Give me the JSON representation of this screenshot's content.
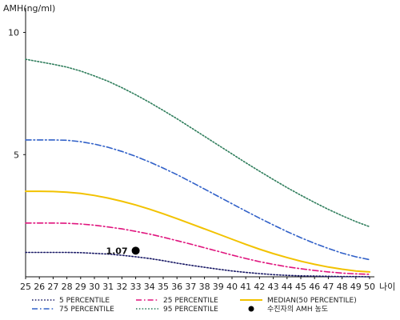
{
  "chart_data": {
    "type": "line",
    "ylabel": "AMH(ng/ml)",
    "xlabel": "나이",
    "x": [
      25,
      26,
      27,
      28,
      29,
      30,
      31,
      32,
      33,
      34,
      35,
      36,
      37,
      38,
      39,
      40,
      41,
      42,
      43,
      44,
      45,
      46,
      47,
      48,
      49,
      50
    ],
    "xticks": [
      "25",
      "26",
      "27",
      "28",
      "29",
      "30",
      "31",
      "32",
      "33",
      "34",
      "35",
      "36",
      "37",
      "38",
      "39",
      "40",
      "41",
      "42",
      "43",
      "44",
      "45",
      "46",
      "47",
      "48",
      "49",
      "50"
    ],
    "ylim": [
      0,
      11
    ],
    "yticks": [
      "5",
      "10"
    ],
    "series": [
      {
        "name": "5 PERCENTILE",
        "color": "#1a1a66",
        "style": "dotted",
        "values": [
          1.0,
          1.0,
          1.0,
          1.0,
          0.99,
          0.96,
          0.93,
          0.88,
          0.82,
          0.75,
          0.66,
          0.56,
          0.47,
          0.39,
          0.31,
          0.24,
          0.18,
          0.13,
          0.09,
          0.06,
          0.04,
          0.03,
          0.02,
          0.01,
          0.01,
          0.0
        ]
      },
      {
        "name": "25 PERCENTILE",
        "color": "#e0157e",
        "style": "dashdot",
        "values": [
          2.2,
          2.2,
          2.2,
          2.19,
          2.16,
          2.11,
          2.04,
          1.96,
          1.86,
          1.75,
          1.62,
          1.48,
          1.34,
          1.19,
          1.04,
          0.89,
          0.75,
          0.62,
          0.51,
          0.41,
          0.33,
          0.26,
          0.2,
          0.15,
          0.12,
          0.1
        ]
      },
      {
        "name": "MEDIAN(50 PERCENTILE)",
        "color": "#f2c200",
        "style": "solid",
        "values": [
          3.5,
          3.5,
          3.49,
          3.46,
          3.41,
          3.33,
          3.22,
          3.09,
          2.94,
          2.77,
          2.58,
          2.38,
          2.17,
          1.96,
          1.75,
          1.54,
          1.33,
          1.13,
          0.95,
          0.79,
          0.64,
          0.51,
          0.4,
          0.31,
          0.24,
          0.2
        ]
      },
      {
        "name": "75 PERCENTILE",
        "color": "#3060c8",
        "style": "dashdot",
        "values": [
          5.6,
          5.6,
          5.6,
          5.59,
          5.53,
          5.43,
          5.3,
          5.13,
          4.93,
          4.7,
          4.45,
          4.18,
          3.89,
          3.59,
          3.29,
          2.99,
          2.69,
          2.4,
          2.12,
          1.85,
          1.6,
          1.37,
          1.16,
          0.97,
          0.82,
          0.7
        ]
      },
      {
        "name": "95 PERCENTILE",
        "color": "#2e7d5b",
        "style": "dotted",
        "values": [
          8.9,
          8.8,
          8.7,
          8.58,
          8.42,
          8.22,
          8.0,
          7.74,
          7.45,
          7.14,
          6.81,
          6.47,
          6.11,
          5.75,
          5.39,
          5.03,
          4.67,
          4.32,
          3.98,
          3.65,
          3.34,
          3.04,
          2.76,
          2.5,
          2.26,
          2.05
        ]
      }
    ],
    "points": [
      {
        "name": "수진자의 AMH 농도",
        "x": 33,
        "y": 1.07,
        "label": "1.07",
        "color": "#000000"
      }
    ],
    "legend": {
      "placement": "bottom",
      "items": [
        {
          "label": "5 PERCENTILE",
          "color": "#1a1a66",
          "style": "dotted"
        },
        {
          "label": "25 PERCENTILE",
          "color": "#e0157e",
          "style": "dashdot"
        },
        {
          "label": "MEDIAN(50 PERCENTILE)",
          "color": "#f2c200",
          "style": "solid"
        },
        {
          "label": "75 PERCENTILE",
          "color": "#3060c8",
          "style": "dashdot"
        },
        {
          "label": "95 PERCENTILE",
          "color": "#2e7d5b",
          "style": "dotted"
        },
        {
          "label": "수진자의 AMH 농도",
          "color": "#000000",
          "style": "marker"
        }
      ]
    },
    "grid": false
  }
}
